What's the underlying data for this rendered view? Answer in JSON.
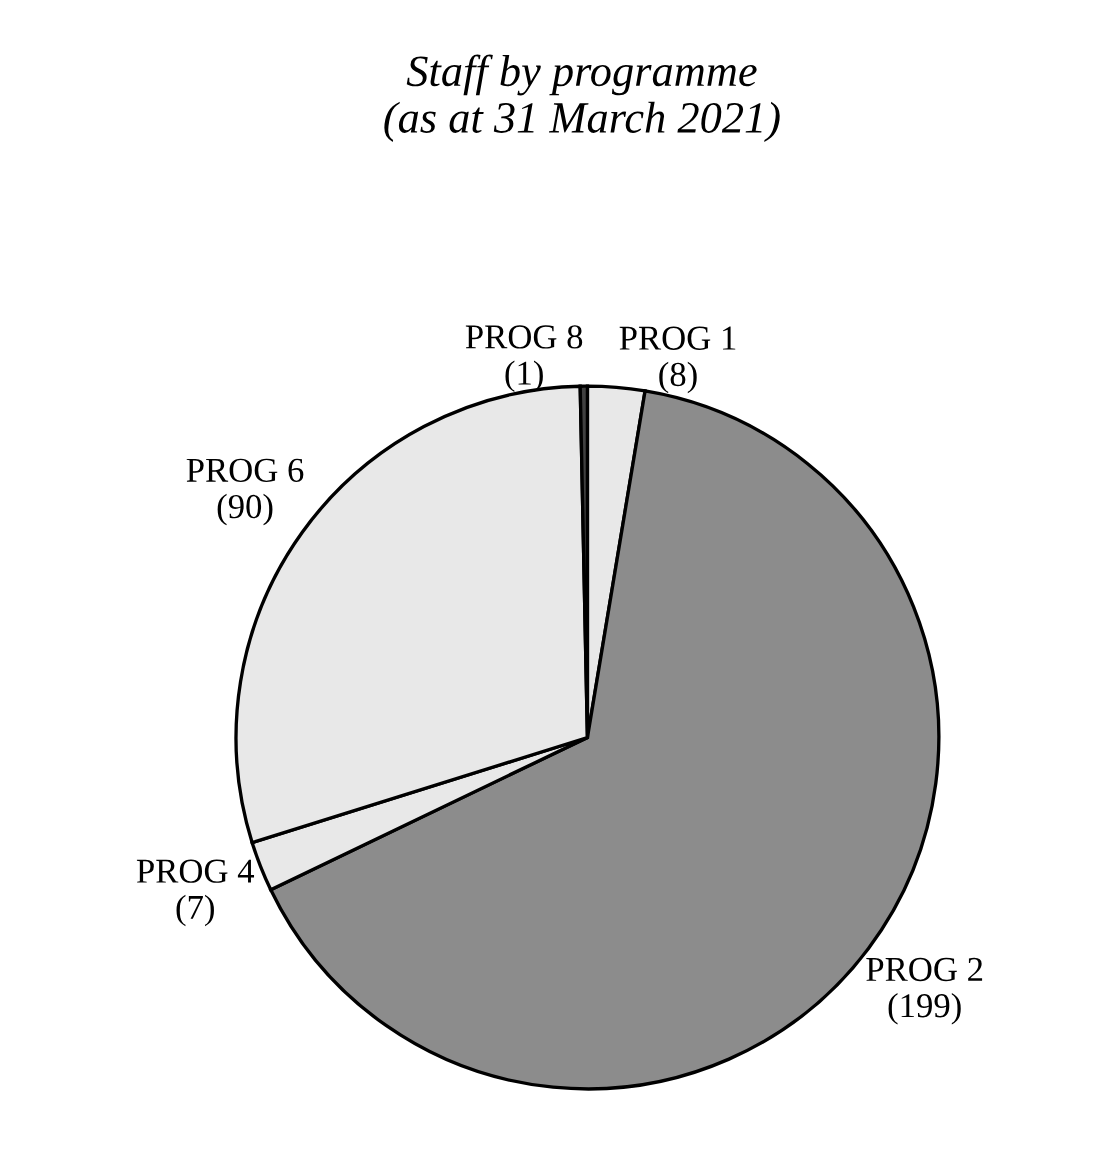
{
  "chart_data": {
    "type": "pie",
    "title": "Staff by programme\n(as at 31 March 2021)",
    "categories": [
      "PROG 1",
      "PROG 2",
      "PROG 4",
      "PROG 6",
      "PROG 8"
    ],
    "values": [
      8,
      199,
      7,
      90,
      1
    ],
    "value_labels": [
      "(8)",
      "(199)",
      "(7)",
      "(90)",
      "(1)"
    ],
    "colors": [
      "#e8e8e8",
      "#8c8c8c",
      "#e8e8e8",
      "#e8e8e8",
      "#404040"
    ]
  }
}
